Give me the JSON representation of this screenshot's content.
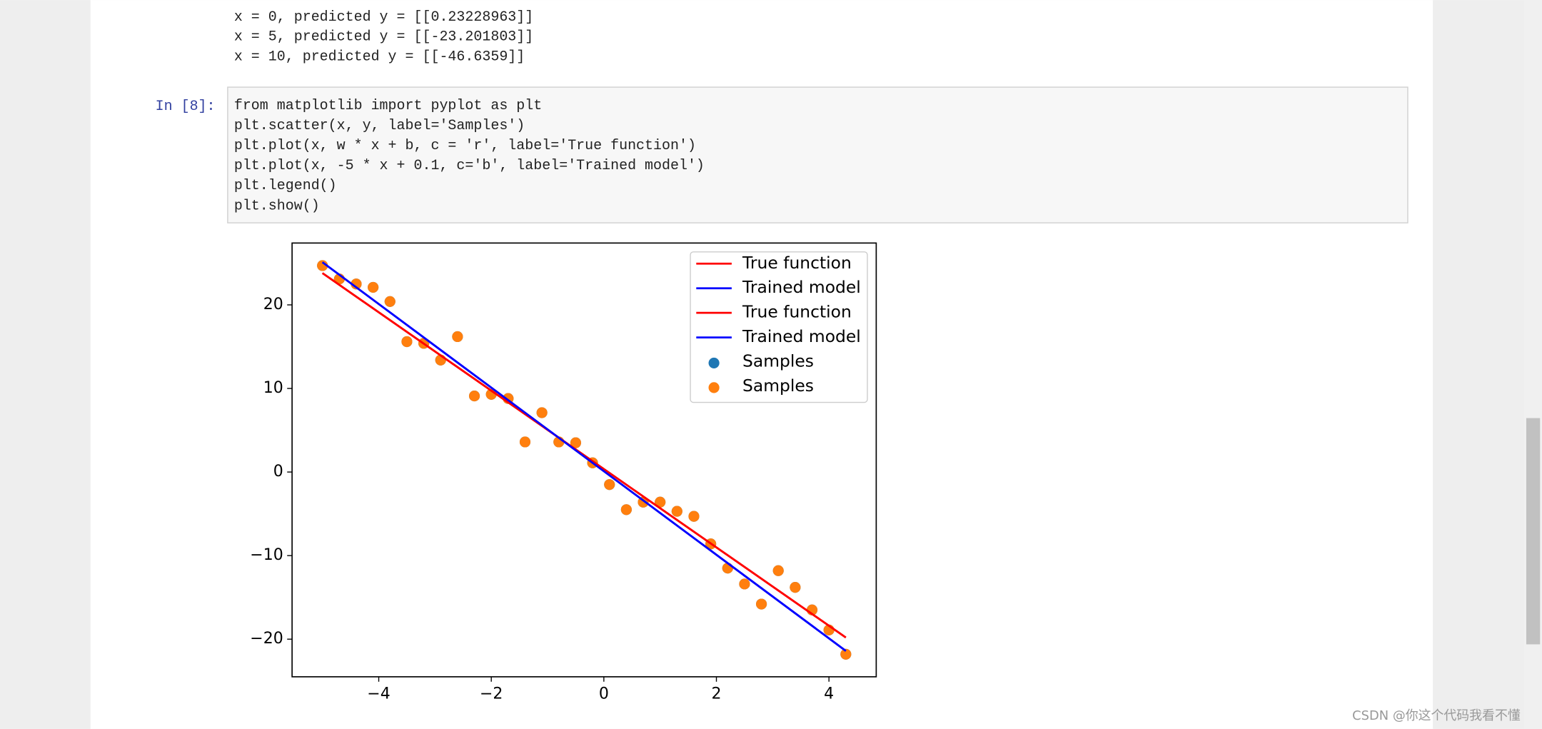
{
  "output_lines": [
    "x = 0, predicted y = [[0.23228963]]",
    "x = 5, predicted y = [[-23.201803]]",
    "x = 10, predicted y = [[-46.6359]]"
  ],
  "prompt": "In  [8]:",
  "code_lines": [
    "from matplotlib import pyplot as plt",
    "plt.scatter(x, y, label='Samples')",
    "plt.plot(x, w * x + b, c = 'r', label='True function')",
    "plt.plot(x, -5 * x + 0.1, c='b', label='Trained model')",
    "plt.legend()",
    "plt.show()"
  ],
  "chart": {
    "type": "scatter",
    "xlim": [
      -5.54,
      4.84
    ],
    "ylim": [
      -24.5,
      27.4
    ],
    "xticks": [
      {
        "value": -4,
        "label": "−4"
      },
      {
        "value": -2,
        "label": "−2"
      },
      0,
      2,
      4
    ],
    "yticks": [
      {
        "value": -20,
        "label": "−20"
      },
      {
        "value": -10,
        "label": "−10"
      },
      0,
      10,
      20
    ],
    "legend": "upper right",
    "series": [
      {
        "name": "True function",
        "kind": "line",
        "color": "#ff0000",
        "x": [
          -5,
          4.3
        ],
        "values": [
          23.8,
          -19.8
        ]
      },
      {
        "name": "Trained model",
        "kind": "line",
        "color": "#0000ff",
        "x": [
          -5,
          4.3
        ],
        "values": [
          25.1,
          -21.4
        ]
      },
      {
        "name": "True function",
        "kind": "line",
        "color": "#ff0000",
        "x": [
          -5,
          4.3
        ],
        "values": [
          23.8,
          -19.8
        ]
      },
      {
        "name": "Trained model",
        "kind": "line",
        "color": "#0000ff",
        "x": [
          -5,
          4.3
        ],
        "values": [
          25.1,
          -21.4
        ]
      },
      {
        "name": "Samples",
        "kind": "points",
        "color": "#1f77b4",
        "x": [
          -5,
          -4.7,
          -4.4,
          -4.1,
          -3.8,
          -3.5,
          -3.2,
          -2.9,
          -2.6,
          -2.3,
          -2,
          -1.7,
          -1.4,
          -1.1,
          -0.8,
          -0.5,
          -0.2,
          0.1,
          0.4,
          0.7,
          1,
          1.3,
          1.6,
          1.9,
          2.2,
          2.5,
          2.8,
          3.1,
          3.4,
          3.7,
          4,
          4.3
        ],
        "values": [
          24.7,
          23.1,
          22.5,
          22.1,
          20.4,
          15.6,
          15.4,
          13.4,
          16.2,
          9.1,
          9.3,
          8.8,
          3.6,
          7.1,
          3.6,
          3.5,
          1.1,
          -1.5,
          -4.5,
          -3.6,
          -3.6,
          -4.7,
          -5.3,
          -8.6,
          -11.5,
          -13.4,
          -15.8,
          -11.8,
          -13.8,
          -16.5,
          -18.9,
          -21.8
        ]
      },
      {
        "name": "Samples",
        "kind": "points",
        "color": "#ff7f0e",
        "x": [
          -5,
          -4.7,
          -4.4,
          -4.1,
          -3.8,
          -3.5,
          -3.2,
          -2.9,
          -2.6,
          -2.3,
          -2,
          -1.7,
          -1.4,
          -1.1,
          -0.8,
          -0.5,
          -0.2,
          0.1,
          0.4,
          0.7,
          1,
          1.3,
          1.6,
          1.9,
          2.2,
          2.5,
          2.8,
          3.1,
          3.4,
          3.7,
          4,
          4.3
        ],
        "values": [
          24.7,
          23.1,
          22.5,
          22.1,
          20.4,
          15.6,
          15.4,
          13.4,
          16.2,
          9.1,
          9.3,
          8.8,
          3.6,
          7.1,
          3.6,
          3.5,
          1.1,
          -1.5,
          -4.5,
          -3.6,
          -3.6,
          -4.7,
          -5.3,
          -8.6,
          -11.5,
          -13.4,
          -15.8,
          -11.8,
          -13.8,
          -16.5,
          -18.9,
          -21.8
        ]
      }
    ]
  },
  "watermark": "CSDN @你这个代码我看不懂"
}
